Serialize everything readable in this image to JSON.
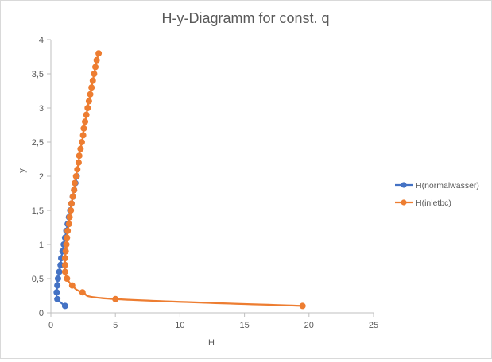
{
  "chart_data": {
    "type": "scatter",
    "title": "H-y-Diagramm for const. q",
    "xlabel": "H",
    "ylabel": "y",
    "xlim": [
      0,
      25
    ],
    "ylim": [
      0,
      4
    ],
    "x_ticks": [
      0,
      5,
      10,
      15,
      20,
      25
    ],
    "y_ticks": [
      0,
      0.5,
      1,
      1.5,
      2,
      2.5,
      3,
      3.5,
      4
    ],
    "x_tick_labels": [
      "0",
      "5",
      "10",
      "15",
      "20",
      "25"
    ],
    "y_tick_labels": [
      "0",
      "0,5",
      "1",
      "1,5",
      "2",
      "2,5",
      "3",
      "3,5",
      "4"
    ],
    "grid": false,
    "legend_position": "right",
    "series": [
      {
        "name": "H(normalwasser)",
        "color": "#4472c4",
        "points": [
          [
            1.1,
            0.1
          ],
          [
            0.5,
            0.2
          ],
          [
            0.45,
            0.3
          ],
          [
            0.5,
            0.4
          ],
          [
            0.55,
            0.5
          ],
          [
            0.65,
            0.6
          ],
          [
            0.75,
            0.7
          ],
          [
            0.8,
            0.8
          ],
          [
            0.9,
            0.9
          ],
          [
            1.0,
            1.0
          ],
          [
            1.1,
            1.1
          ],
          [
            1.2,
            1.2
          ],
          [
            1.3,
            1.3
          ],
          [
            1.4,
            1.4
          ],
          [
            1.5,
            1.5
          ],
          [
            1.6,
            1.6
          ],
          [
            1.7,
            1.7
          ],
          [
            1.8,
            1.8
          ],
          [
            1.9,
            1.9
          ],
          [
            2.0,
            2.0
          ]
        ]
      },
      {
        "name": "H(inletbc)",
        "color": "#ed7d31",
        "points": [
          [
            19.5,
            0.1
          ],
          [
            5.0,
            0.2
          ],
          [
            2.45,
            0.3
          ],
          [
            1.65,
            0.4
          ],
          [
            1.25,
            0.5
          ],
          [
            1.1,
            0.6
          ],
          [
            1.1,
            0.7
          ],
          [
            1.1,
            0.8
          ],
          [
            1.15,
            0.9
          ],
          [
            1.2,
            1.0
          ],
          [
            1.25,
            1.1
          ],
          [
            1.3,
            1.2
          ],
          [
            1.4,
            1.3
          ],
          [
            1.45,
            1.4
          ],
          [
            1.55,
            1.5
          ],
          [
            1.6,
            1.6
          ],
          [
            1.7,
            1.7
          ],
          [
            1.8,
            1.8
          ],
          [
            1.85,
            1.9
          ],
          [
            1.95,
            2.0
          ],
          [
            2.05,
            2.1
          ],
          [
            2.15,
            2.2
          ],
          [
            2.2,
            2.3
          ],
          [
            2.3,
            2.4
          ],
          [
            2.4,
            2.5
          ],
          [
            2.5,
            2.6
          ],
          [
            2.55,
            2.7
          ],
          [
            2.65,
            2.8
          ],
          [
            2.75,
            2.9
          ],
          [
            2.85,
            3.0
          ],
          [
            2.95,
            3.1
          ],
          [
            3.05,
            3.2
          ],
          [
            3.15,
            3.3
          ],
          [
            3.25,
            3.4
          ],
          [
            3.35,
            3.5
          ],
          [
            3.45,
            3.6
          ],
          [
            3.55,
            3.7
          ],
          [
            3.7,
            3.8
          ]
        ]
      }
    ]
  }
}
